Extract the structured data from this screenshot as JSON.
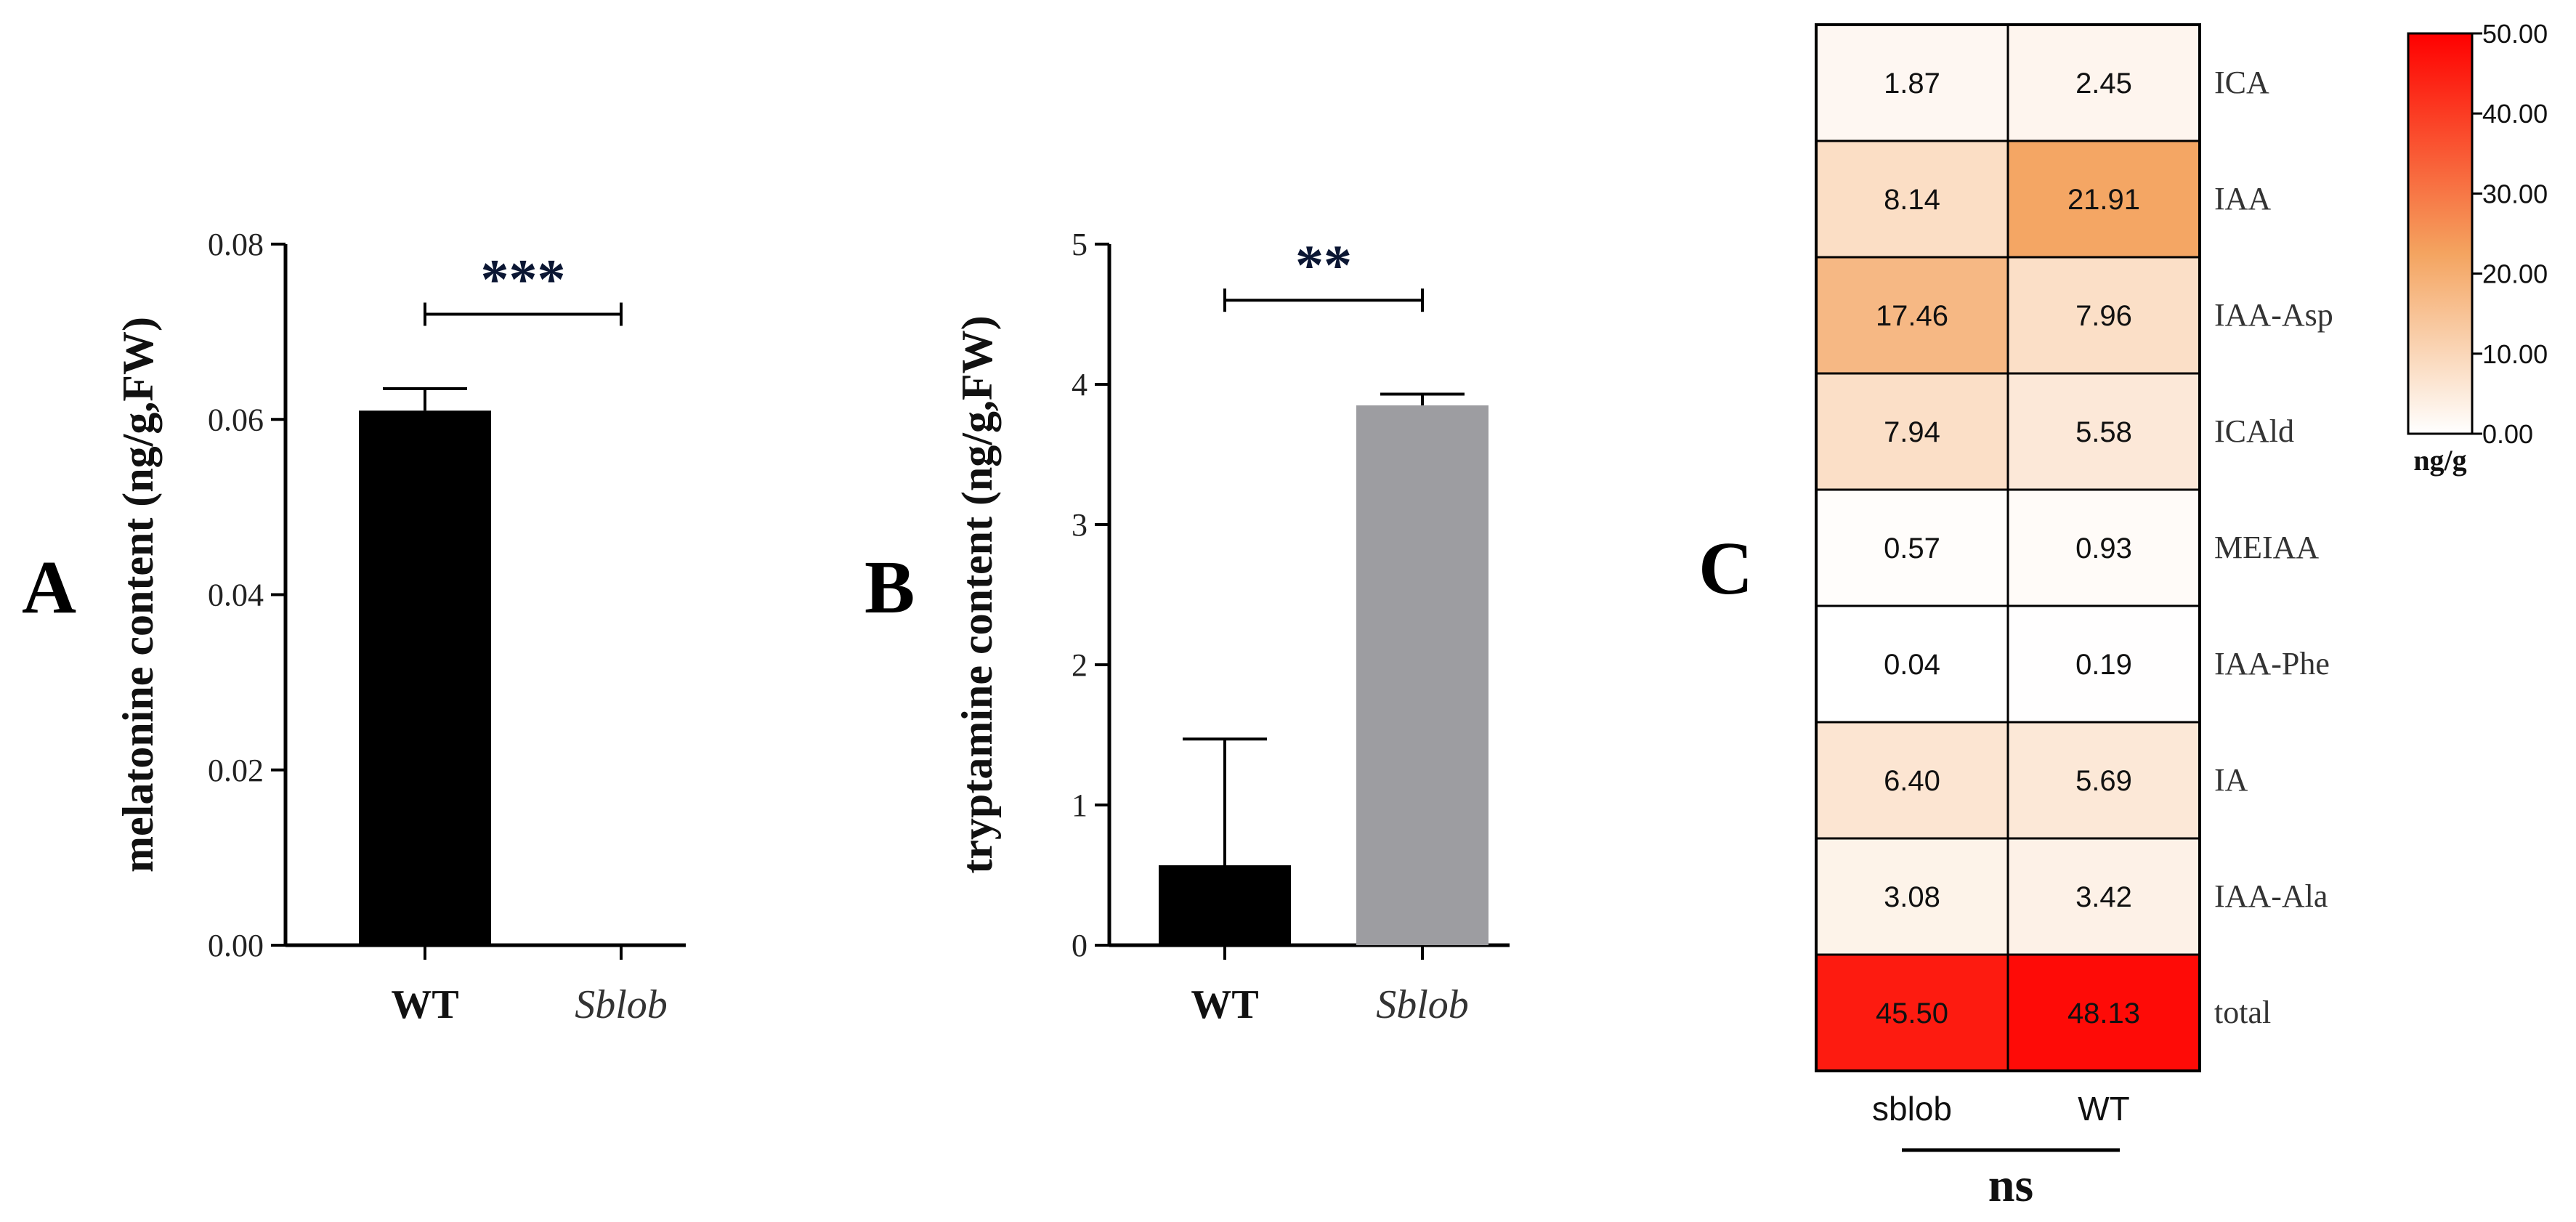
{
  "figure": {
    "panel_labels": {
      "a": "A",
      "b": "B",
      "c": "C"
    }
  },
  "chart_data": [
    {
      "id": "A",
      "type": "bar",
      "categories": [
        "WT",
        "Sblob"
      ],
      "category_italic": [
        false,
        true
      ],
      "values": [
        0.061,
        0.0
      ],
      "errors": [
        0.0025,
        0.0
      ],
      "colors": [
        "#000000",
        "#000000"
      ],
      "ylabel": "melatonine content (ng/g,FW)",
      "ylim": [
        0,
        0.08
      ],
      "yticks": [
        0.0,
        0.02,
        0.04,
        0.06,
        0.08
      ],
      "ytick_labels": [
        "0.00",
        "0.02",
        "0.04",
        "0.06",
        "0.08"
      ],
      "significance": {
        "label": "***",
        "between": [
          0,
          1
        ],
        "y": 0.072
      }
    },
    {
      "id": "B",
      "type": "bar",
      "categories": [
        "WT",
        "Sblob"
      ],
      "category_italic": [
        false,
        true
      ],
      "values": [
        0.57,
        3.85
      ],
      "errors": [
        0.9,
        0.08
      ],
      "colors": [
        "#000000",
        "#9d9da1"
      ],
      "ylabel": "tryptamine content (ng/g,FW)",
      "ylim": [
        0,
        5
      ],
      "yticks": [
        0,
        1,
        2,
        3,
        4,
        5
      ],
      "ytick_labels": [
        "0",
        "1",
        "2",
        "3",
        "4",
        "5"
      ],
      "significance": {
        "label": "**",
        "between": [
          0,
          1
        ],
        "y": 4.6
      }
    },
    {
      "id": "C",
      "type": "heatmap",
      "rows": [
        "ICA",
        "IAA",
        "IAA-Asp",
        "ICAld",
        "MEIAA",
        "IAA-Phe",
        "IA",
        "IAA-Ala",
        "total"
      ],
      "columns": [
        "sblob",
        "WT"
      ],
      "values": [
        [
          1.87,
          2.45
        ],
        [
          8.14,
          21.91
        ],
        [
          17.46,
          7.96
        ],
        [
          7.94,
          5.58
        ],
        [
          0.57,
          0.93
        ],
        [
          0.04,
          0.19
        ],
        [
          6.4,
          5.69
        ],
        [
          3.08,
          3.42
        ],
        [
          45.5,
          48.13
        ]
      ],
      "cell_labels": [
        [
          "1.87",
          "2.45"
        ],
        [
          "8.14",
          "21.91"
        ],
        [
          "17.46",
          "7.96"
        ],
        [
          "7.94",
          "5.58"
        ],
        [
          "0.57",
          "0.93"
        ],
        [
          "0.04",
          "0.19"
        ],
        [
          "6.40",
          "5.69"
        ],
        [
          "3.08",
          "3.42"
        ],
        [
          "45.50",
          "48.13"
        ]
      ],
      "colorbar": {
        "min": 0,
        "max": 50,
        "ticks": [
          0,
          10,
          20,
          30,
          40,
          50
        ],
        "tick_labels": [
          "0.00",
          "10.00",
          "20.00",
          "30.00",
          "40.00",
          "50.00"
        ],
        "unit": "ng/g",
        "color_stops": [
          "#ffffff",
          "#f4a460",
          "#ff0000"
        ]
      },
      "significance_label": "ns"
    }
  ]
}
